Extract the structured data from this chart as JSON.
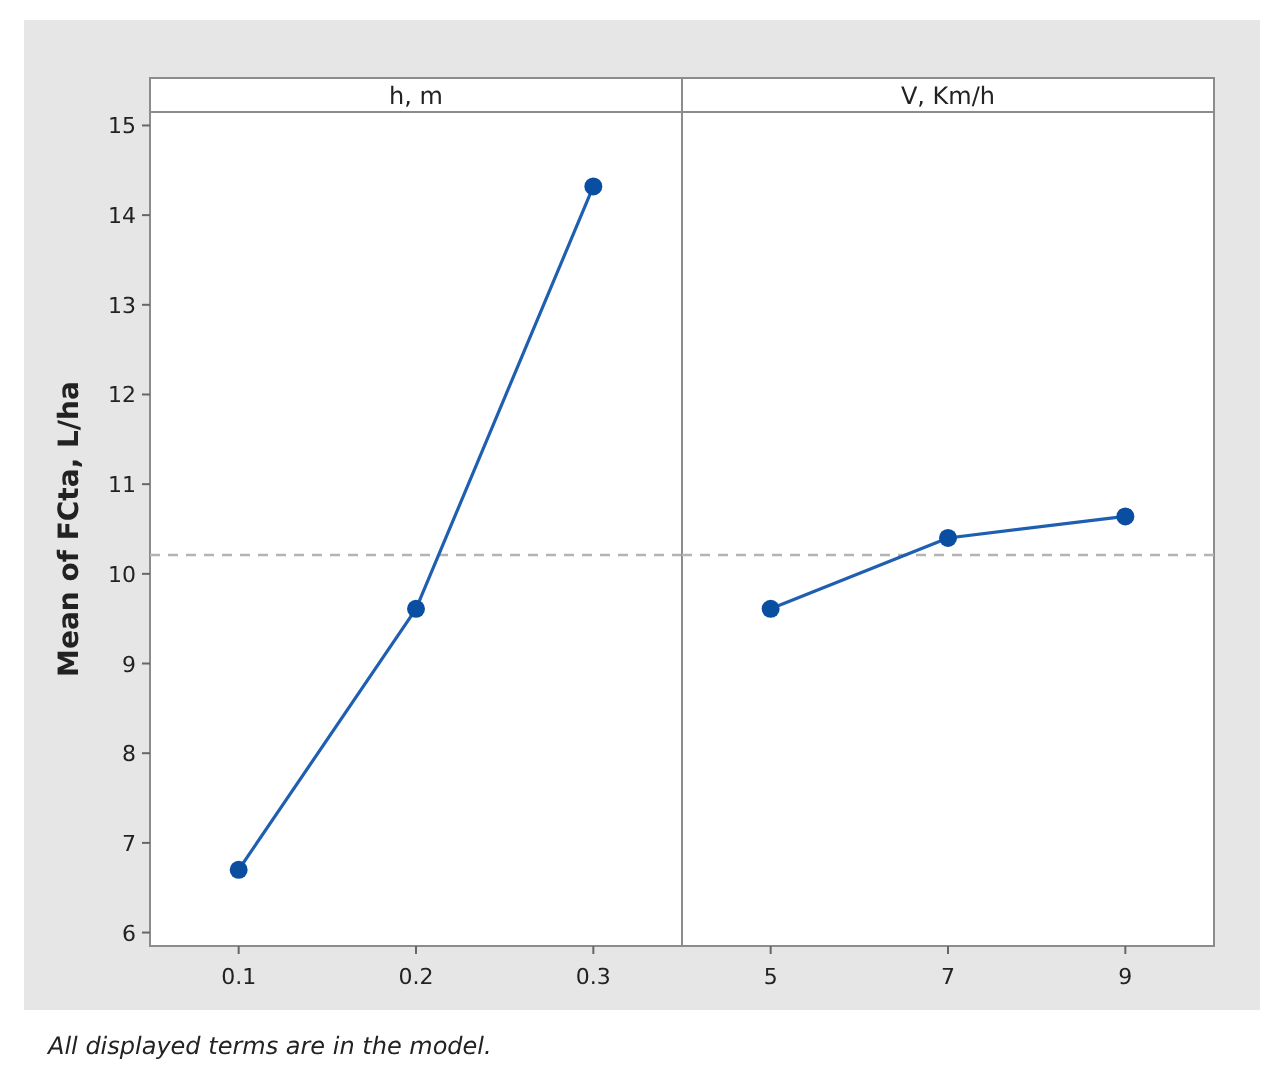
{
  "chart_data": [
    {
      "type": "line",
      "title": "h, m",
      "ylabel": "Mean of FCta, L/ha",
      "categories": [
        "0.1",
        "0.2",
        "0.3"
      ],
      "series": [
        {
          "color": "#1f5fb0",
          "values": [
            6.7,
            9.61,
            14.32
          ]
        }
      ],
      "ylim": [
        5.85,
        15.15
      ],
      "yticks": [
        6,
        7,
        8,
        9,
        10,
        11,
        12,
        13,
        14,
        15
      ],
      "marker": "circle",
      "line_style": "solid",
      "grid": false,
      "ref_lines": [
        {
          "axis": "y",
          "value": 10.21,
          "color": "#b4b4b4",
          "line_style": "dashed"
        }
      ],
      "annotations": [
        "All displayed terms are in the model."
      ]
    },
    {
      "type": "line",
      "title": "V, Km/h",
      "categories": [
        "5",
        "7",
        "9"
      ],
      "series": [
        {
          "color": "#1f5fb0",
          "values": [
            9.61,
            10.4,
            10.64
          ]
        }
      ],
      "ylim": [
        5.85,
        15.15
      ],
      "yticks": [
        6,
        7,
        8,
        9,
        10,
        11,
        12,
        13,
        14,
        15
      ],
      "tick_labels": "x",
      "marker": "circle",
      "line_style": "solid",
      "grid": false,
      "ref_lines": [
        {
          "axis": "y",
          "value": 10.21,
          "color": "#b4b4b4",
          "line_style": "dashed"
        }
      ]
    }
  ]
}
